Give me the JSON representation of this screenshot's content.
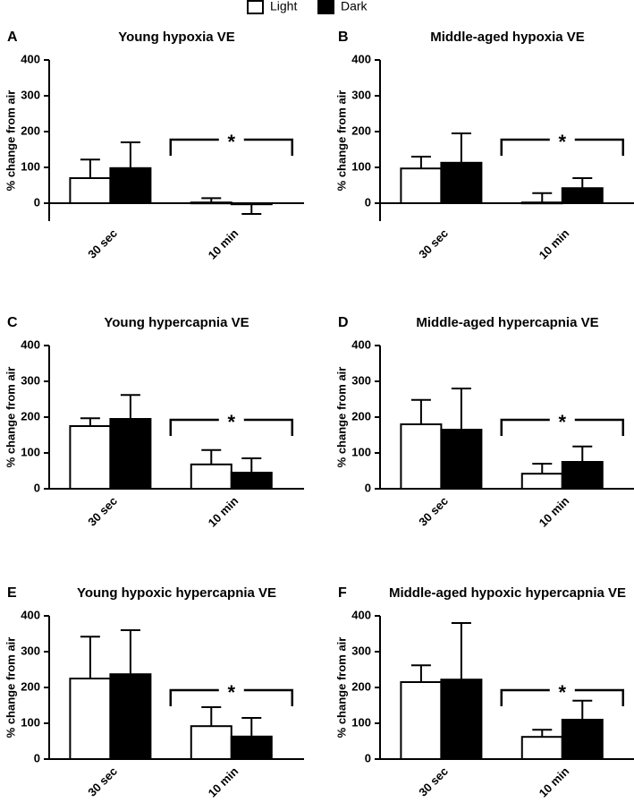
{
  "chart_data": [
    {
      "type": "bar",
      "panel": "A",
      "title": "Young hypoxia VE",
      "ylabel": "% change from air",
      "categories": [
        "30 sec",
        "10 min"
      ],
      "series": [
        {
          "name": "Light",
          "color": "#ffffff",
          "values": [
            70,
            2
          ],
          "errors": [
            52,
            12
          ]
        },
        {
          "name": "Dark",
          "color": "#000000",
          "values": [
            98,
            -3
          ],
          "errors": [
            72,
            27
          ]
        }
      ],
      "ylim": [
        -50,
        400
      ],
      "yticks": [
        0,
        100,
        200,
        300,
        400
      ],
      "annotation": "*"
    },
    {
      "type": "bar",
      "panel": "B",
      "title": "Middle-aged hypoxia VE",
      "ylabel": "% change from air",
      "categories": [
        "30 sec",
        "10 min"
      ],
      "series": [
        {
          "name": "Light",
          "color": "#ffffff",
          "values": [
            97,
            2
          ],
          "errors": [
            33,
            26
          ]
        },
        {
          "name": "Dark",
          "color": "#000000",
          "values": [
            113,
            42
          ],
          "errors": [
            82,
            28
          ]
        }
      ],
      "ylim": [
        -50,
        400
      ],
      "yticks": [
        0,
        100,
        200,
        300,
        400
      ],
      "annotation": "*"
    },
    {
      "type": "bar",
      "panel": "C",
      "title": "Young hypercapnia VE",
      "ylabel": "% change from air",
      "categories": [
        "30 sec",
        "10 min"
      ],
      "series": [
        {
          "name": "Light",
          "color": "#ffffff",
          "values": [
            175,
            68
          ],
          "errors": [
            22,
            40
          ]
        },
        {
          "name": "Dark",
          "color": "#000000",
          "values": [
            195,
            45
          ],
          "errors": [
            67,
            40
          ]
        }
      ],
      "ylim": [
        0,
        400
      ],
      "yticks": [
        0,
        100,
        200,
        300,
        400
      ],
      "annotation": "*"
    },
    {
      "type": "bar",
      "panel": "D",
      "title": "Middle-aged hypercapnia VE",
      "ylabel": "% change from air",
      "categories": [
        "30 sec",
        "10 min"
      ],
      "series": [
        {
          "name": "Light",
          "color": "#ffffff",
          "values": [
            180,
            42
          ],
          "errors": [
            68,
            28
          ]
        },
        {
          "name": "Dark",
          "color": "#000000",
          "values": [
            165,
            75
          ],
          "errors": [
            115,
            43
          ]
        }
      ],
      "ylim": [
        0,
        400
      ],
      "yticks": [
        0,
        100,
        200,
        300,
        400
      ],
      "annotation": "*"
    },
    {
      "type": "bar",
      "panel": "E",
      "title": "Young hypoxic hypercapnia VE",
      "ylabel": "% change from air",
      "categories": [
        "30 sec",
        "10 min"
      ],
      "series": [
        {
          "name": "Light",
          "color": "#ffffff",
          "values": [
            225,
            92
          ],
          "errors": [
            117,
            53
          ]
        },
        {
          "name": "Dark",
          "color": "#000000",
          "values": [
            237,
            63
          ],
          "errors": [
            123,
            52
          ]
        }
      ],
      "ylim": [
        0,
        400
      ],
      "yticks": [
        0,
        100,
        200,
        300,
        400
      ],
      "annotation": "*"
    },
    {
      "type": "bar",
      "panel": "F",
      "title": "Middle-aged hypoxic hypercapnia VE",
      "ylabel": "% change from air",
      "categories": [
        "30 sec",
        "10 min"
      ],
      "series": [
        {
          "name": "Light",
          "color": "#ffffff",
          "values": [
            215,
            62
          ],
          "errors": [
            47,
            20
          ]
        },
        {
          "name": "Dark",
          "color": "#000000",
          "values": [
            222,
            110
          ],
          "errors": [
            158,
            53
          ]
        }
      ],
      "ylim": [
        0,
        400
      ],
      "yticks": [
        0,
        100,
        200,
        300,
        400
      ],
      "annotation": "*"
    }
  ]
}
